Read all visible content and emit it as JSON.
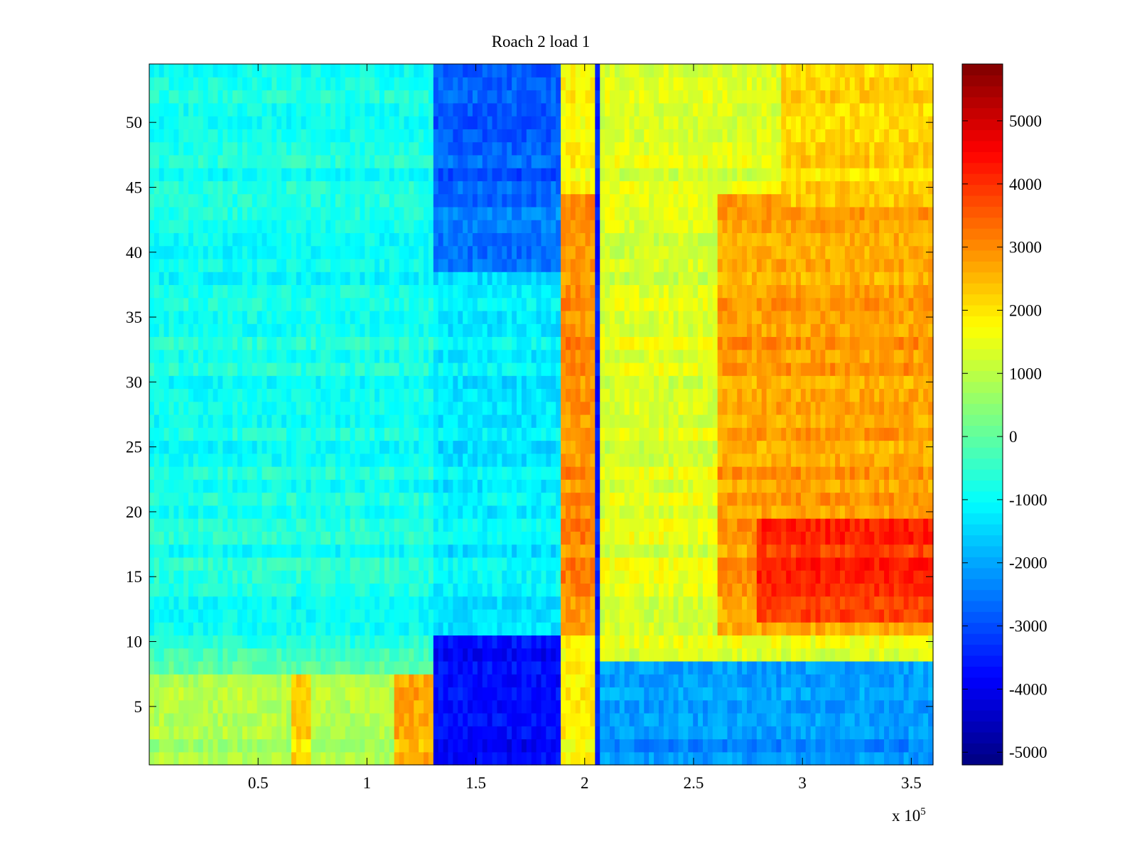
{
  "chart_data": {
    "type": "heatmap",
    "title": "Roach 2 load 1",
    "xlabel": "",
    "ylabel": "",
    "x_multiplier_label": "x 10",
    "x_multiplier_exponent": "5",
    "xlim": [
      0,
      360000
    ],
    "ylim": [
      0.5,
      54.5
    ],
    "x_ticks": [
      50000,
      100000,
      150000,
      200000,
      250000,
      300000,
      350000
    ],
    "x_tick_labels": [
      "0.5",
      "1",
      "1.5",
      "2",
      "2.5",
      "3",
      "3.5"
    ],
    "y_ticks": [
      5,
      10,
      15,
      20,
      25,
      30,
      35,
      40,
      45,
      50
    ],
    "y_tick_labels": [
      "5",
      "10",
      "15",
      "20",
      "25",
      "30",
      "35",
      "40",
      "45",
      "50"
    ],
    "rows": 54,
    "colorbar": {
      "colormap": "jet",
      "clim": [
        -5200,
        5900
      ],
      "ticks": [
        -5000,
        -4000,
        -3000,
        -2000,
        -1000,
        0,
        1000,
        2000,
        3000,
        4000,
        5000
      ],
      "tick_labels": [
        "-5000",
        "-4000",
        "-3000",
        "-2000",
        "-1000",
        "0",
        "1000",
        "2000",
        "3000",
        "4000",
        "5000"
      ]
    },
    "regions": [
      {
        "x": [
          0,
          130000
        ],
        "rows": [
          10,
          54
        ],
        "value": -800
      },
      {
        "x": [
          0,
          130000
        ],
        "rows": [
          1,
          7
        ],
        "value": 800
      },
      {
        "x": [
          0,
          130000
        ],
        "rows": [
          8,
          9
        ],
        "value": -200
      },
      {
        "x": [
          65000,
          75000
        ],
        "rows": [
          1,
          7
        ],
        "value": 2200
      },
      {
        "x": [
          112000,
          130000
        ],
        "rows": [
          1,
          7
        ],
        "value": 2600
      },
      {
        "x": [
          130000,
          190000
        ],
        "rows": [
          44,
          54
        ],
        "value": -2800
      },
      {
        "x": [
          130000,
          190000
        ],
        "rows": [
          39,
          43
        ],
        "value": -2400
      },
      {
        "x": [
          130000,
          190000
        ],
        "rows": [
          11,
          38
        ],
        "value": -1200
      },
      {
        "x": [
          130000,
          190000
        ],
        "rows": [
          1,
          10
        ],
        "value": -3800
      },
      {
        "x": [
          190000,
          204000
        ],
        "rows": [
          1,
          54
        ],
        "value": 1800
      },
      {
        "x": [
          190000,
          204000
        ],
        "rows": [
          11,
          44
        ],
        "value": 3000
      },
      {
        "x": [
          204000,
          208000
        ],
        "rows": [
          1,
          54
        ],
        "value": -3500
      },
      {
        "x": [
          208000,
          360000
        ],
        "rows": [
          1,
          8
        ],
        "value": -2200
      },
      {
        "x": [
          208000,
          360000
        ],
        "rows": [
          9,
          54
        ],
        "value": 1400
      },
      {
        "x": [
          260000,
          360000
        ],
        "rows": [
          11,
          44
        ],
        "value": 2800
      },
      {
        "x": [
          290000,
          360000
        ],
        "rows": [
          44,
          54
        ],
        "value": 2200
      },
      {
        "x": [
          280000,
          360000
        ],
        "rows": [
          12,
          19
        ],
        "value": 4000
      }
    ]
  }
}
